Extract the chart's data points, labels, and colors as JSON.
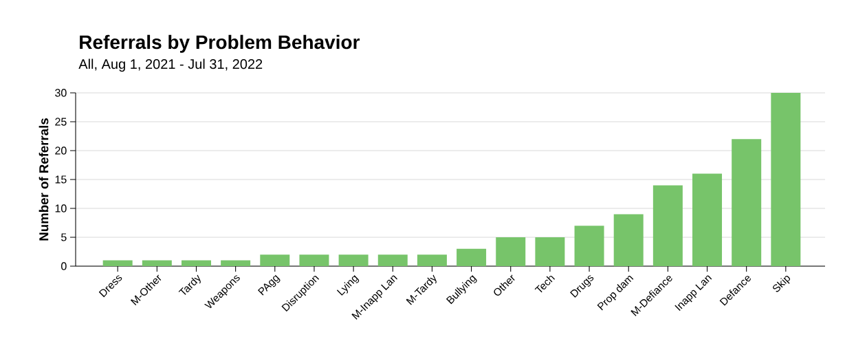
{
  "chart_data": {
    "type": "bar",
    "title": "Referrals by Problem Behavior",
    "subtitle": "All, Aug 1, 2021 - Jul 31, 2022",
    "ylabel": "Number of Referrals",
    "categories": [
      "Dress",
      "M-Other",
      "Tardy",
      "Weapons",
      "PAgg",
      "Disruption",
      "Lying",
      "M-Inapp Lan",
      "M-Tardy",
      "Bullying",
      "Other",
      "Tech",
      "Drugs",
      "Prop dam",
      "M-Defiance",
      "Inapp Lan",
      "Defance",
      "Skip"
    ],
    "values": [
      1,
      1,
      1,
      1,
      2,
      2,
      2,
      2,
      2,
      3,
      5,
      5,
      7,
      9,
      14,
      16,
      22,
      30
    ],
    "color": "#77c46a",
    "ylim": [
      0,
      30
    ],
    "yticks": [
      0,
      5,
      10,
      15,
      20,
      25,
      30
    ],
    "grid": "y"
  }
}
